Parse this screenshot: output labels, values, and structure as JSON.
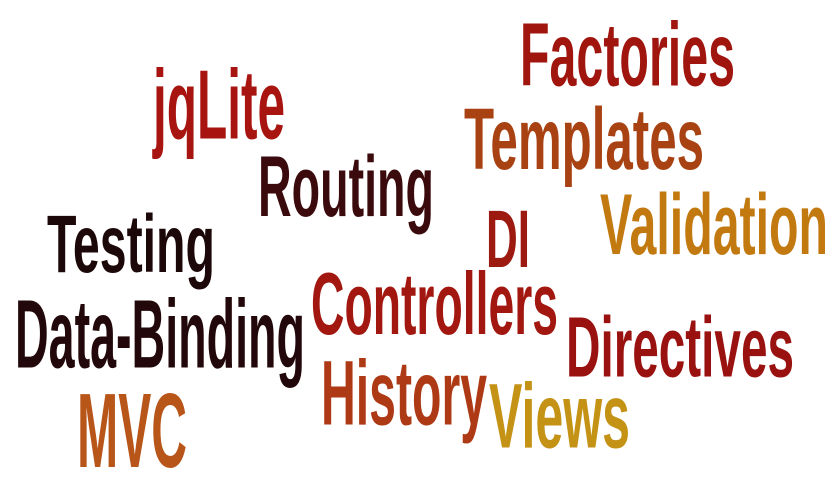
{
  "cloud": {
    "words": [
      {
        "text": "Factories",
        "color": "#a0160f"
      },
      {
        "text": "jqLite",
        "color": "#a8140f"
      },
      {
        "text": "Templates",
        "color": "#a84212"
      },
      {
        "text": "Routing",
        "color": "#3a0a0c"
      },
      {
        "text": "Testing",
        "color": "#1c0709"
      },
      {
        "text": "DI",
        "color": "#9c1a10"
      },
      {
        "text": "Validation",
        "color": "#c27a10"
      },
      {
        "text": "Controllers",
        "color": "#a21810"
      },
      {
        "text": "Data-Binding",
        "color": "#22080a"
      },
      {
        "text": "Directives",
        "color": "#9a1210"
      },
      {
        "text": "History",
        "color": "#ad3a14"
      },
      {
        "text": "Views",
        "color": "#c49214"
      },
      {
        "text": "MVC",
        "color": "#b8561a"
      }
    ]
  }
}
